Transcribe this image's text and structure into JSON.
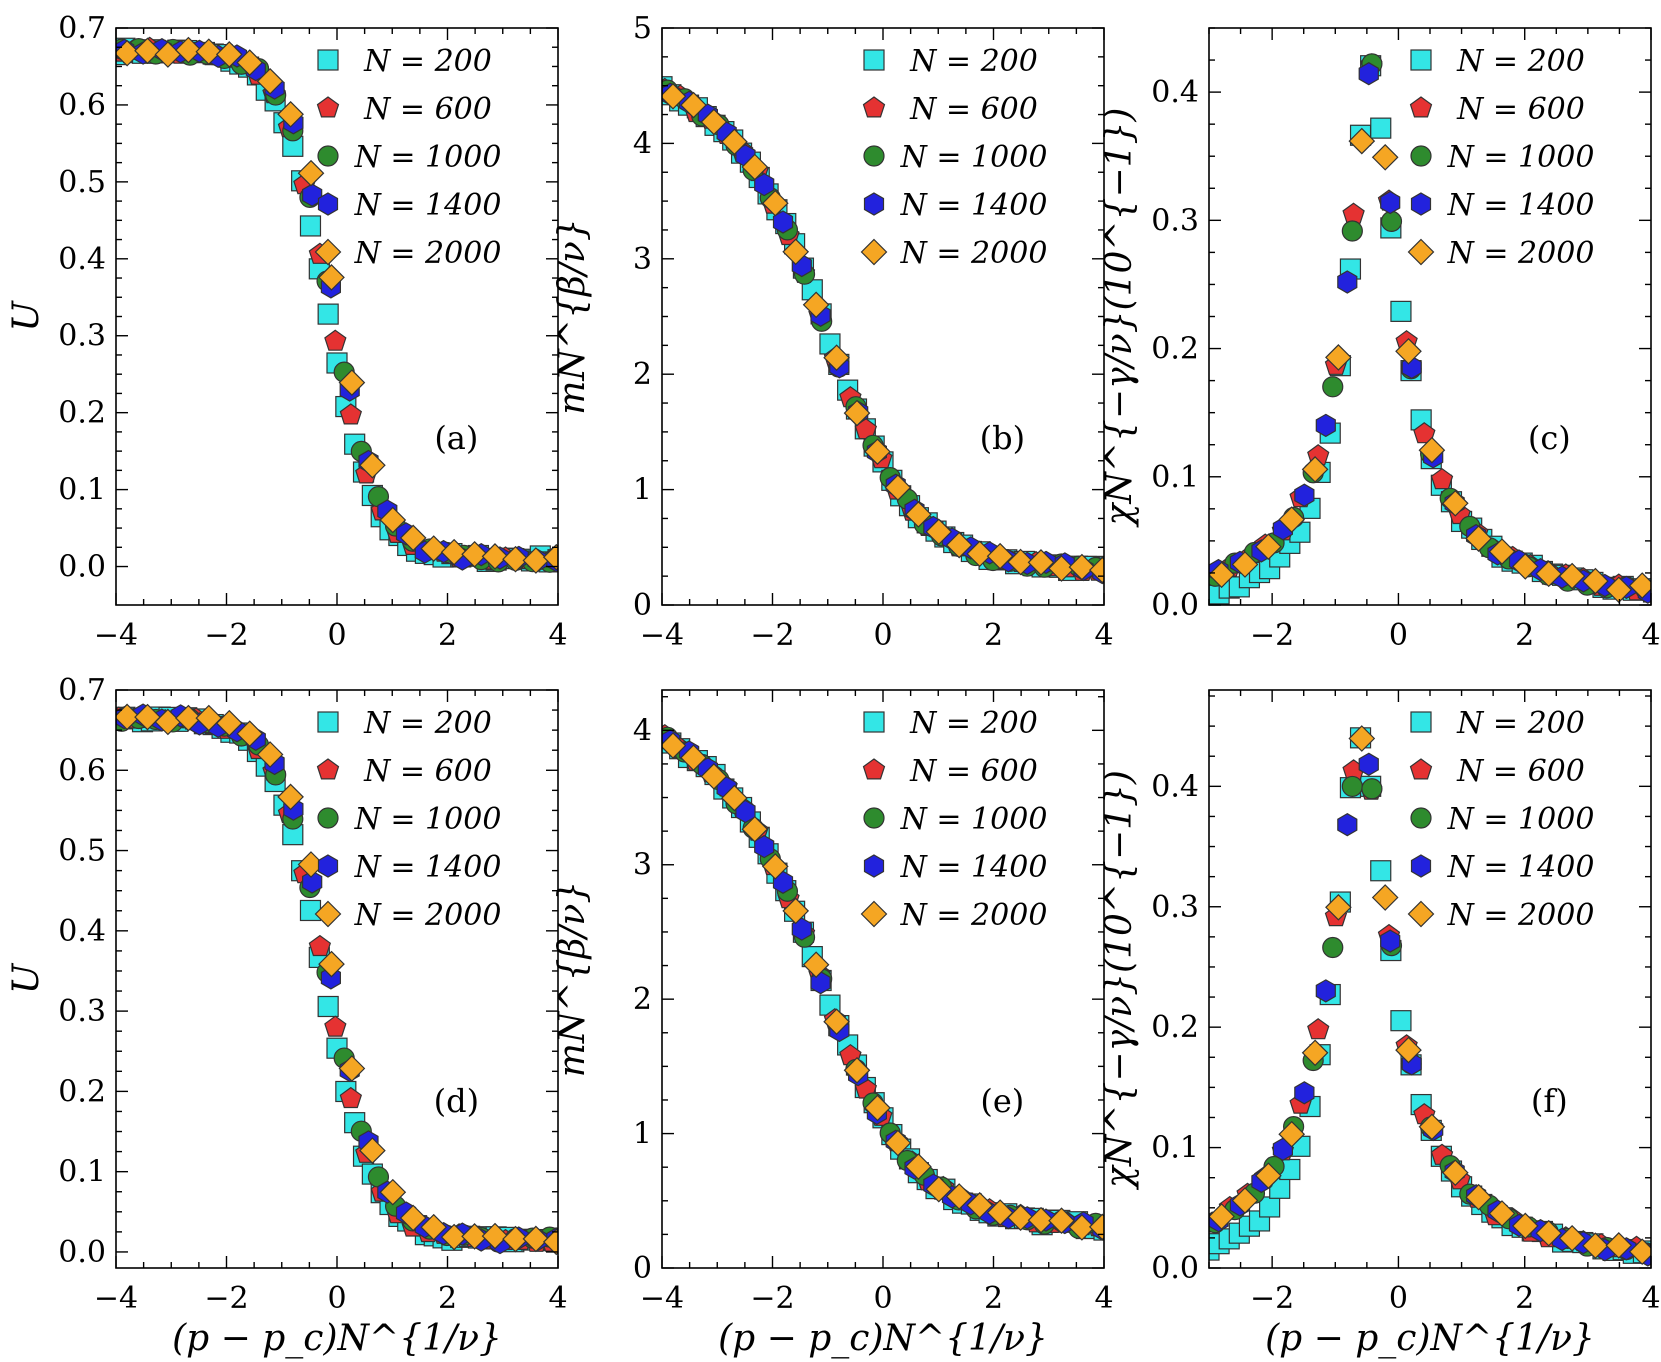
{
  "legend_series": [
    {
      "name": "N = 200",
      "color": "#33e6e6",
      "marker": "square"
    },
    {
      "name": "N = 600",
      "color": "#e53232",
      "marker": "pentagon"
    },
    {
      "name": "N = 1000",
      "color": "#2e8b2e",
      "marker": "circle"
    },
    {
      "name": "N = 1400",
      "color": "#2222dd",
      "marker": "hexagon"
    },
    {
      "name": "N = 2000",
      "color": "#f5a623",
      "marker": "diamond"
    }
  ],
  "chart_data": [
    {
      "panel": "(a)",
      "type": "scatter",
      "ylabel": "U",
      "xlabel": "",
      "xlim": [
        -4,
        4
      ],
      "ylim": [
        -0.05,
        0.7
      ],
      "xticks": [
        -4,
        -2,
        0,
        2,
        4
      ],
      "yticks": [
        0.0,
        0.1,
        0.2,
        0.3,
        0.4,
        0.5,
        0.6,
        0.7
      ],
      "legend_position": "top-right",
      "grid": false,
      "curve": {
        "kind": "sigmoid",
        "x0": -0.2,
        "width": 0.42,
        "amp": 0.66,
        "base": 0.01
      }
    },
    {
      "panel": "(b)",
      "type": "scatter",
      "ylabel": "mN^{β/ν}",
      "xlabel": "",
      "xlim": [
        -4,
        4
      ],
      "ylim": [
        0,
        5
      ],
      "xticks": [
        -4,
        -2,
        0,
        2,
        4
      ],
      "yticks": [
        0,
        1,
        2,
        3,
        4,
        5
      ],
      "legend_position": "top-right",
      "grid": false,
      "curve": {
        "kind": "magnet",
        "x0": -0.9,
        "width": 0.75,
        "lin": -0.25,
        "amp": 3.6,
        "base": 0.3
      }
    },
    {
      "panel": "(c)",
      "type": "scatter",
      "ylabel": "χN^{−γ/ν}(10^{−1})",
      "xlabel": "",
      "xlim": [
        -3,
        4
      ],
      "ylim": [
        0,
        0.45
      ],
      "xticks": [
        -2,
        0,
        2,
        4
      ],
      "yticks": [
        0.0,
        0.1,
        0.2,
        0.3,
        0.4
      ],
      "legend_position": "top-right",
      "grid": false,
      "curve": {
        "kind": "peak",
        "x0": -0.45,
        "height": 0.42,
        "left": 0.48,
        "right": 0.55
      }
    },
    {
      "panel": "(d)",
      "type": "scatter",
      "ylabel": "U",
      "xlabel": "(p − p_c)N^{1/ν}",
      "xlim": [
        -4,
        4
      ],
      "ylim": [
        -0.02,
        0.7
      ],
      "xticks": [
        -4,
        -2,
        0,
        2,
        4
      ],
      "yticks": [
        0.0,
        0.1,
        0.2,
        0.3,
        0.4,
        0.5,
        0.6,
        0.7
      ],
      "legend_position": "top-right",
      "grid": false,
      "curve": {
        "kind": "sigmoid",
        "x0": -0.25,
        "width": 0.45,
        "amp": 0.65,
        "base": 0.015
      }
    },
    {
      "panel": "(e)",
      "type": "scatter",
      "ylabel": "mN^{β/ν}",
      "xlabel": "(p − p_c)N^{1/ν}",
      "xlim": [
        -4,
        4
      ],
      "ylim": [
        0,
        4.3
      ],
      "xticks": [
        -4,
        -2,
        0,
        2,
        4
      ],
      "yticks": [
        0,
        1,
        2,
        3,
        4
      ],
      "legend_position": "top-right",
      "grid": false,
      "curve": {
        "kind": "magnet",
        "x0": -1.0,
        "width": 0.8,
        "lin": -0.2,
        "amp": 3.2,
        "base": 0.3
      }
    },
    {
      "panel": "(f)",
      "type": "scatter",
      "ylabel": "χN^{−γ/ν}(10^{−1})",
      "xlabel": "(p − p_c)N^{1/ν}",
      "xlim": [
        -3,
        4
      ],
      "ylim": [
        0,
        0.48
      ],
      "xticks": [
        -2,
        0,
        2,
        4
      ],
      "yticks": [
        0.0,
        0.1,
        0.2,
        0.3,
        0.4
      ],
      "legend_position": "top-right",
      "grid": false,
      "curve": {
        "kind": "peak",
        "x0": -0.6,
        "height": 0.44,
        "left": 0.6,
        "right": 0.6
      }
    }
  ]
}
